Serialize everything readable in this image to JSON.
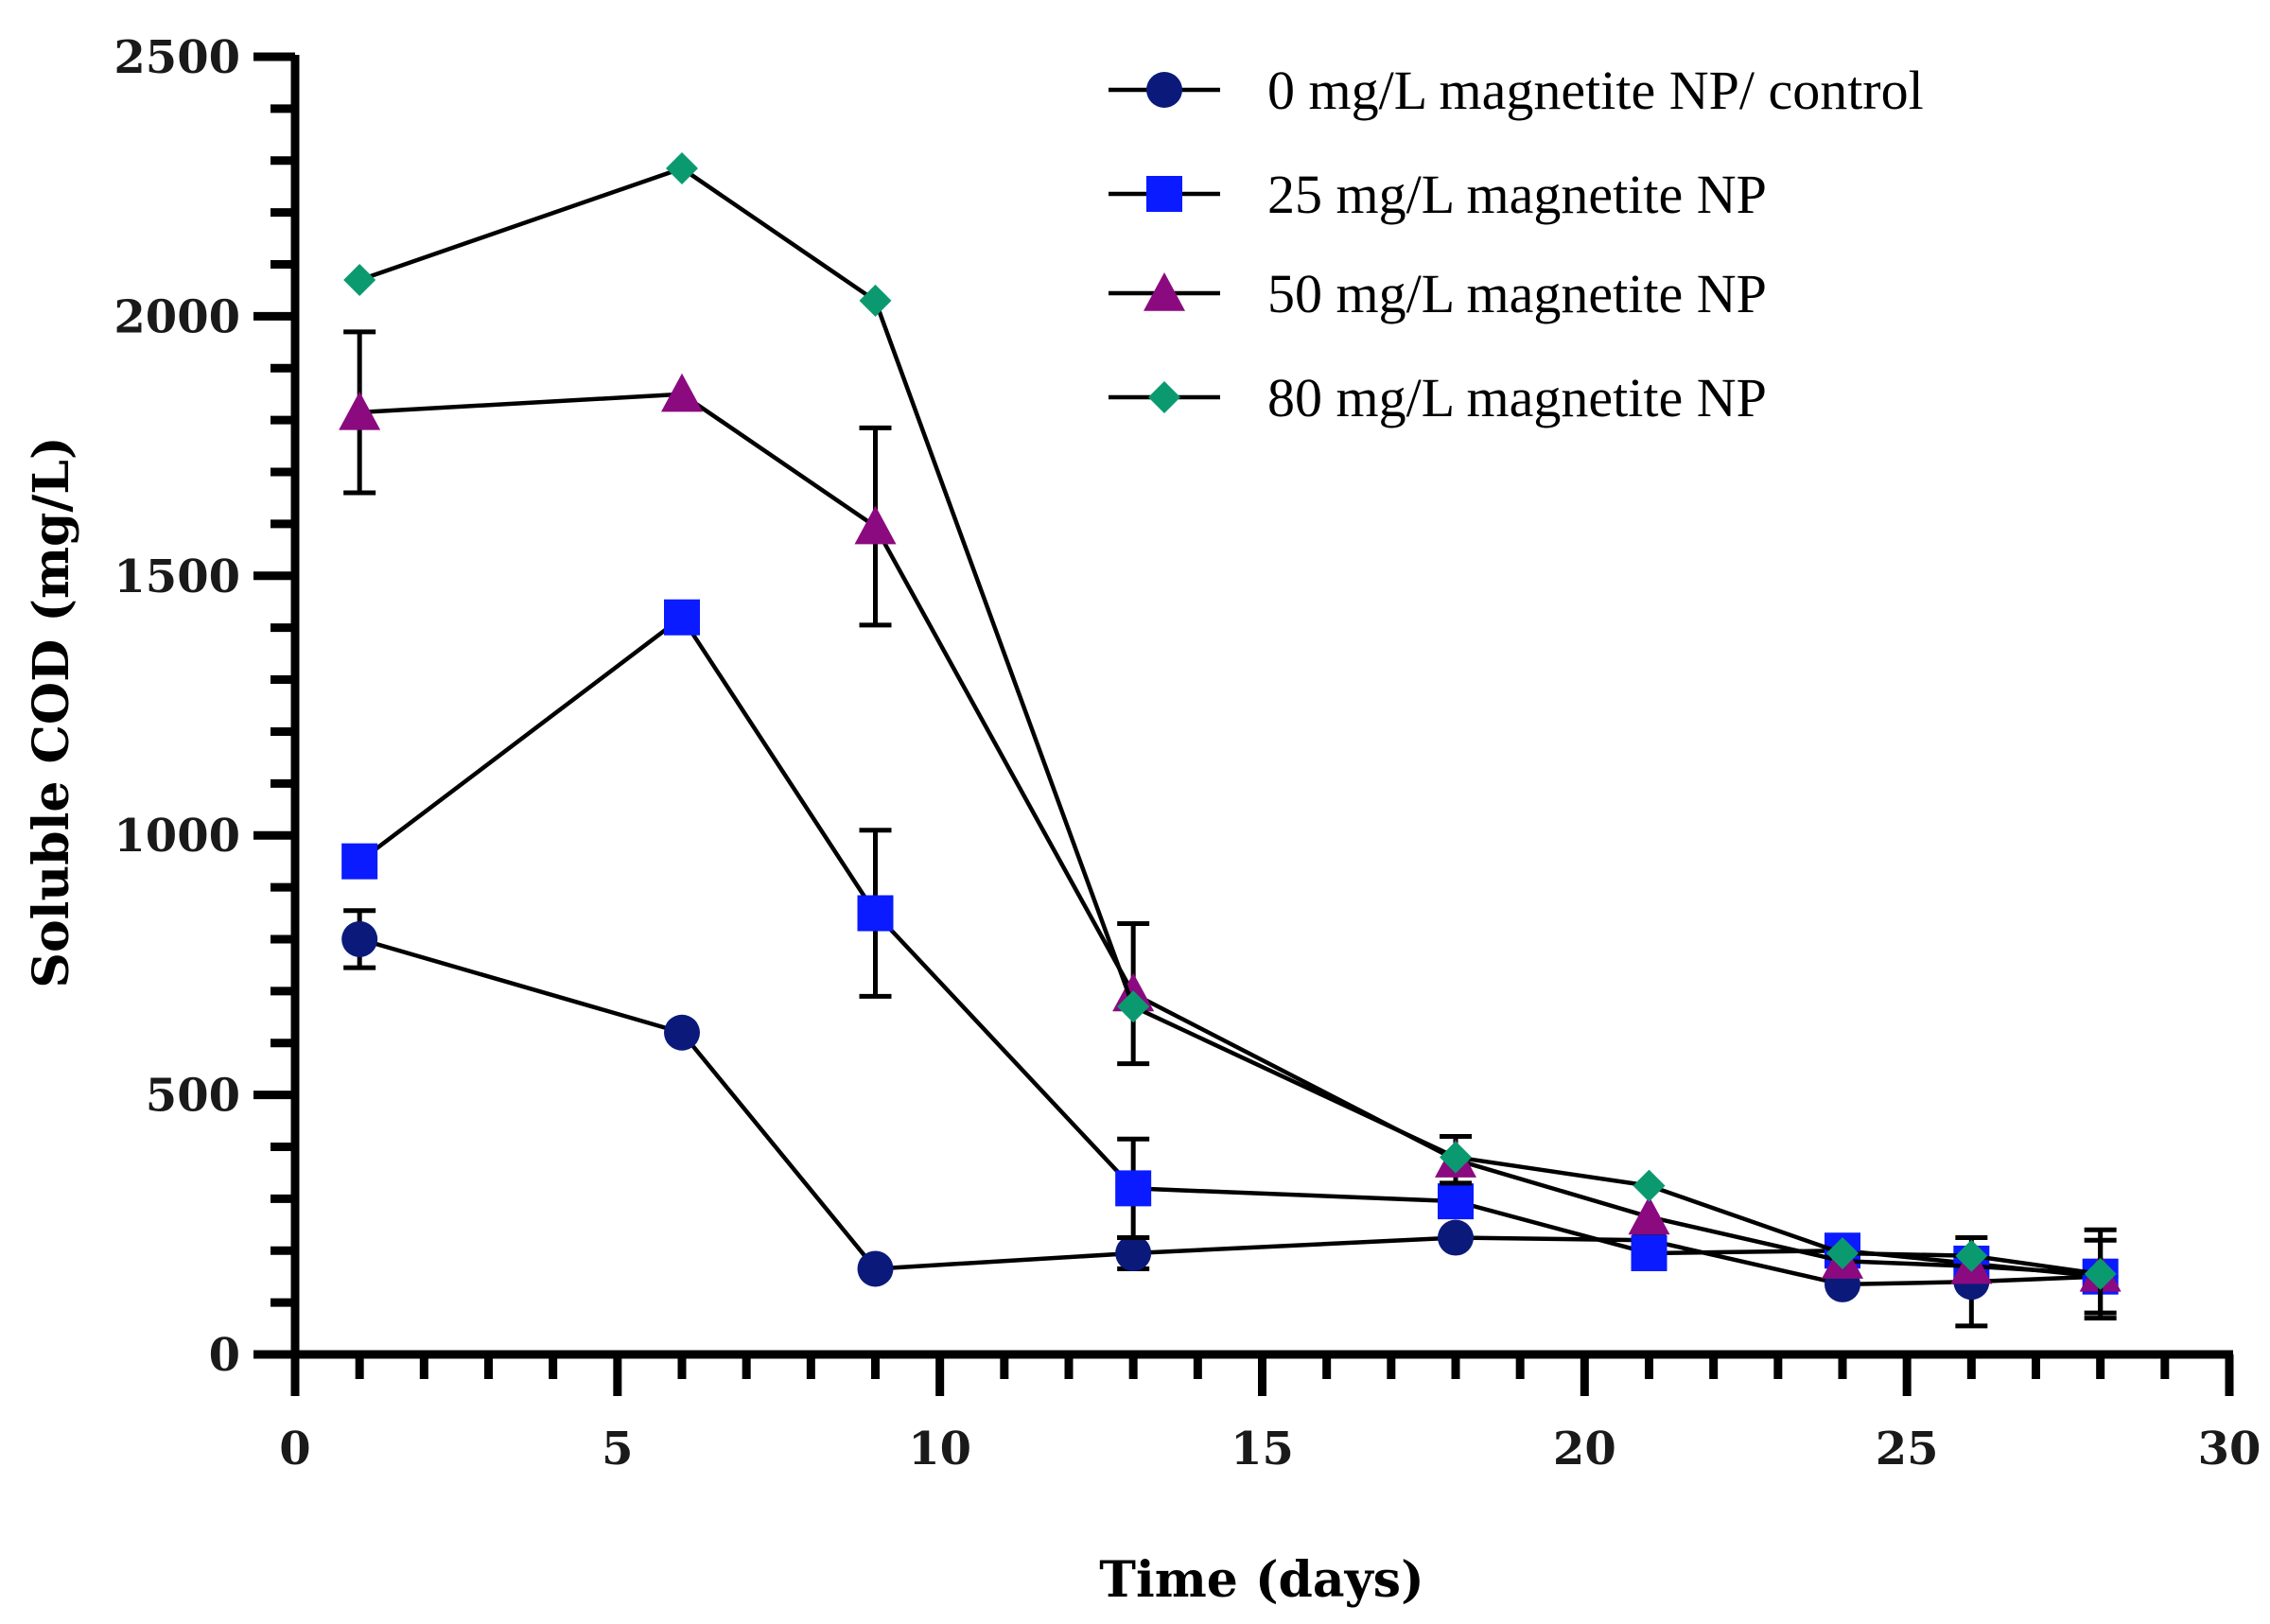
{
  "chart_data": {
    "type": "line",
    "title": "",
    "xlabel": "Time (days)",
    "ylabel": "Soluble COD (mg/L)",
    "xlim": [
      0,
      30
    ],
    "ylim": [
      0,
      2500
    ],
    "xticks": [
      "0",
      "5",
      "10",
      "15",
      "20",
      "25",
      "30"
    ],
    "yticks": [
      "0",
      "500",
      "1000",
      "1500",
      "2000",
      "2500"
    ],
    "x": [
      1,
      6,
      9,
      13,
      18,
      21,
      24,
      26,
      28
    ],
    "legend_position": "top-right",
    "series": [
      {
        "name": "0 mg/L magnetite NP/ control",
        "marker": "circle",
        "color": "#0b1a7a",
        "values": [
          800,
          620,
          165,
          195,
          225,
          220,
          135,
          140,
          150
        ],
        "errors": [
          55,
          0,
          0,
          30,
          0,
          0,
          0,
          85,
          70
        ]
      },
      {
        "name": "25 mg/L magnetite NP",
        "marker": "square",
        "color": "#0a1bff",
        "values": [
          950,
          1420,
          850,
          320,
          295,
          195,
          200,
          175,
          150
        ],
        "errors": [
          0,
          0,
          160,
          95,
          0,
          0,
          0,
          0,
          0
        ]
      },
      {
        "name": "50 mg/L magnetite NP",
        "marker": "triangle",
        "color": "#8b0a7f",
        "values": [
          1815,
          1850,
          1595,
          695,
          375,
          265,
          180,
          170,
          155
        ],
        "errors": [
          155,
          0,
          190,
          135,
          45,
          0,
          0,
          0,
          0
        ]
      },
      {
        "name": "80 mg/L magnetite NP",
        "marker": "diamond",
        "color": "#0b9a70",
        "values": [
          2070,
          2285,
          2030,
          670,
          380,
          325,
          195,
          190,
          155
        ],
        "errors": [
          0,
          0,
          0,
          0,
          0,
          0,
          0,
          0,
          85
        ]
      }
    ]
  }
}
